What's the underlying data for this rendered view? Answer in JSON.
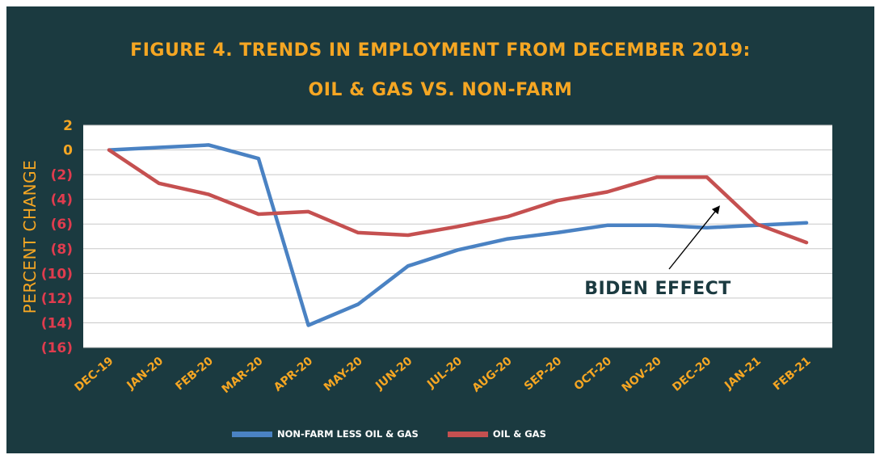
{
  "chart_data": {
    "type": "line",
    "title": "FIGURE 4. TRENDS IN EMPLOYMENT FROM DECEMBER 2019:",
    "subtitle": "OIL & GAS VS. NON-FARM",
    "xlabel": "",
    "ylabel": "PERCENT CHANGE",
    "ylim": [
      -16,
      2
    ],
    "yticks": [
      2,
      0,
      -2,
      -4,
      -6,
      -8,
      -10,
      -12,
      -14,
      -16
    ],
    "ytick_labels": [
      "2",
      "0",
      "(2)",
      "(4)",
      "(6)",
      "(8)",
      "(10)",
      "(12)",
      "(14)",
      "(16)"
    ],
    "categories": [
      "DEC-19",
      "JAN-20",
      "FEB-20",
      "MAR-20",
      "APR-20",
      "MAY-20",
      "JUN-20",
      "JUL-20",
      "AUG-20",
      "SEP-20",
      "OCT-20",
      "NOV-20",
      "DEC-20",
      "JAN-21",
      "FEB-21"
    ],
    "series": [
      {
        "name": "NON-FARM LESS OIL & GAS",
        "color": "#4a82c3",
        "values": [
          0,
          0.2,
          0.4,
          -0.7,
          -14.2,
          -12.5,
          -9.4,
          -8.1,
          -7.2,
          -6.7,
          -6.1,
          -6.1,
          -6.3,
          -6.1,
          -5.9
        ]
      },
      {
        "name": "OIL & GAS",
        "color": "#c55050",
        "values": [
          0,
          -2.7,
          -3.6,
          -5.2,
          -5.0,
          -6.7,
          -6.9,
          -6.2,
          -5.4,
          -4.1,
          -3.4,
          -2.2,
          -2.2,
          -6.0,
          -7.5
        ]
      }
    ],
    "annotation": {
      "text": "BIDEN EFFECT",
      "target_category": "DEC-20"
    },
    "grid": true,
    "legend_placement": "bottom",
    "colors": {
      "background": "#1b3a40",
      "title": "#f5a623",
      "tick_positive": "#f5a623",
      "tick_negative": "#e03c4e",
      "plot_bg": "#ffffff",
      "grid": "#c8c8c8",
      "annotation": "#1b3a40"
    }
  }
}
